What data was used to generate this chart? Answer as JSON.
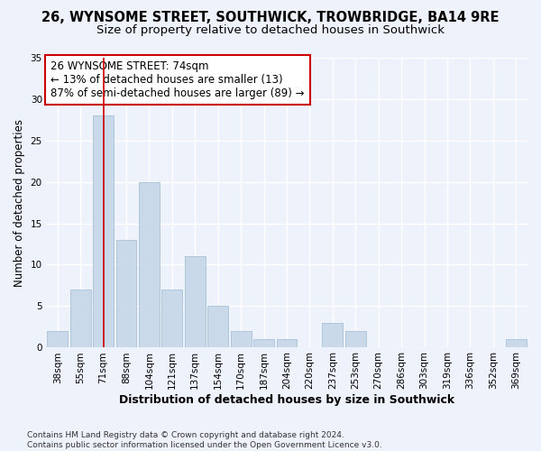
{
  "title1": "26, WYNSOME STREET, SOUTHWICK, TROWBRIDGE, BA14 9RE",
  "title2": "Size of property relative to detached houses in Southwick",
  "xlabel": "Distribution of detached houses by size in Southwick",
  "ylabel": "Number of detached properties",
  "categories": [
    "38sqm",
    "55sqm",
    "71sqm",
    "88sqm",
    "104sqm",
    "121sqm",
    "137sqm",
    "154sqm",
    "170sqm",
    "187sqm",
    "204sqm",
    "220sqm",
    "237sqm",
    "253sqm",
    "270sqm",
    "286sqm",
    "303sqm",
    "319sqm",
    "336sqm",
    "352sqm",
    "369sqm"
  ],
  "values": [
    2,
    7,
    28,
    13,
    20,
    7,
    11,
    5,
    2,
    1,
    1,
    0,
    3,
    2,
    0,
    0,
    0,
    0,
    0,
    0,
    1
  ],
  "bar_color": "#c9d9ea",
  "bar_edge_color": "#a8c0d6",
  "vline_x": 2,
  "vline_color": "#cc0000",
  "annotation_text": "26 WYNSOME STREET: 74sqm\n← 13% of detached houses are smaller (13)\n87% of semi-detached houses are larger (89) →",
  "annotation_box_color": "white",
  "annotation_box_edge_color": "#cc0000",
  "ylim": [
    0,
    35
  ],
  "yticks": [
    0,
    5,
    10,
    15,
    20,
    25,
    30,
    35
  ],
  "footnote": "Contains HM Land Registry data © Crown copyright and database right 2024.\nContains public sector information licensed under the Open Government Licence v3.0.",
  "bg_color": "#eef2fa",
  "plot_bg_color": "#eef2fa",
  "grid_color": "white",
  "title1_fontsize": 10.5,
  "title2_fontsize": 9.5,
  "xlabel_fontsize": 9,
  "ylabel_fontsize": 8.5,
  "tick_fontsize": 7.5,
  "annot_fontsize": 8.5,
  "footnote_fontsize": 6.5
}
